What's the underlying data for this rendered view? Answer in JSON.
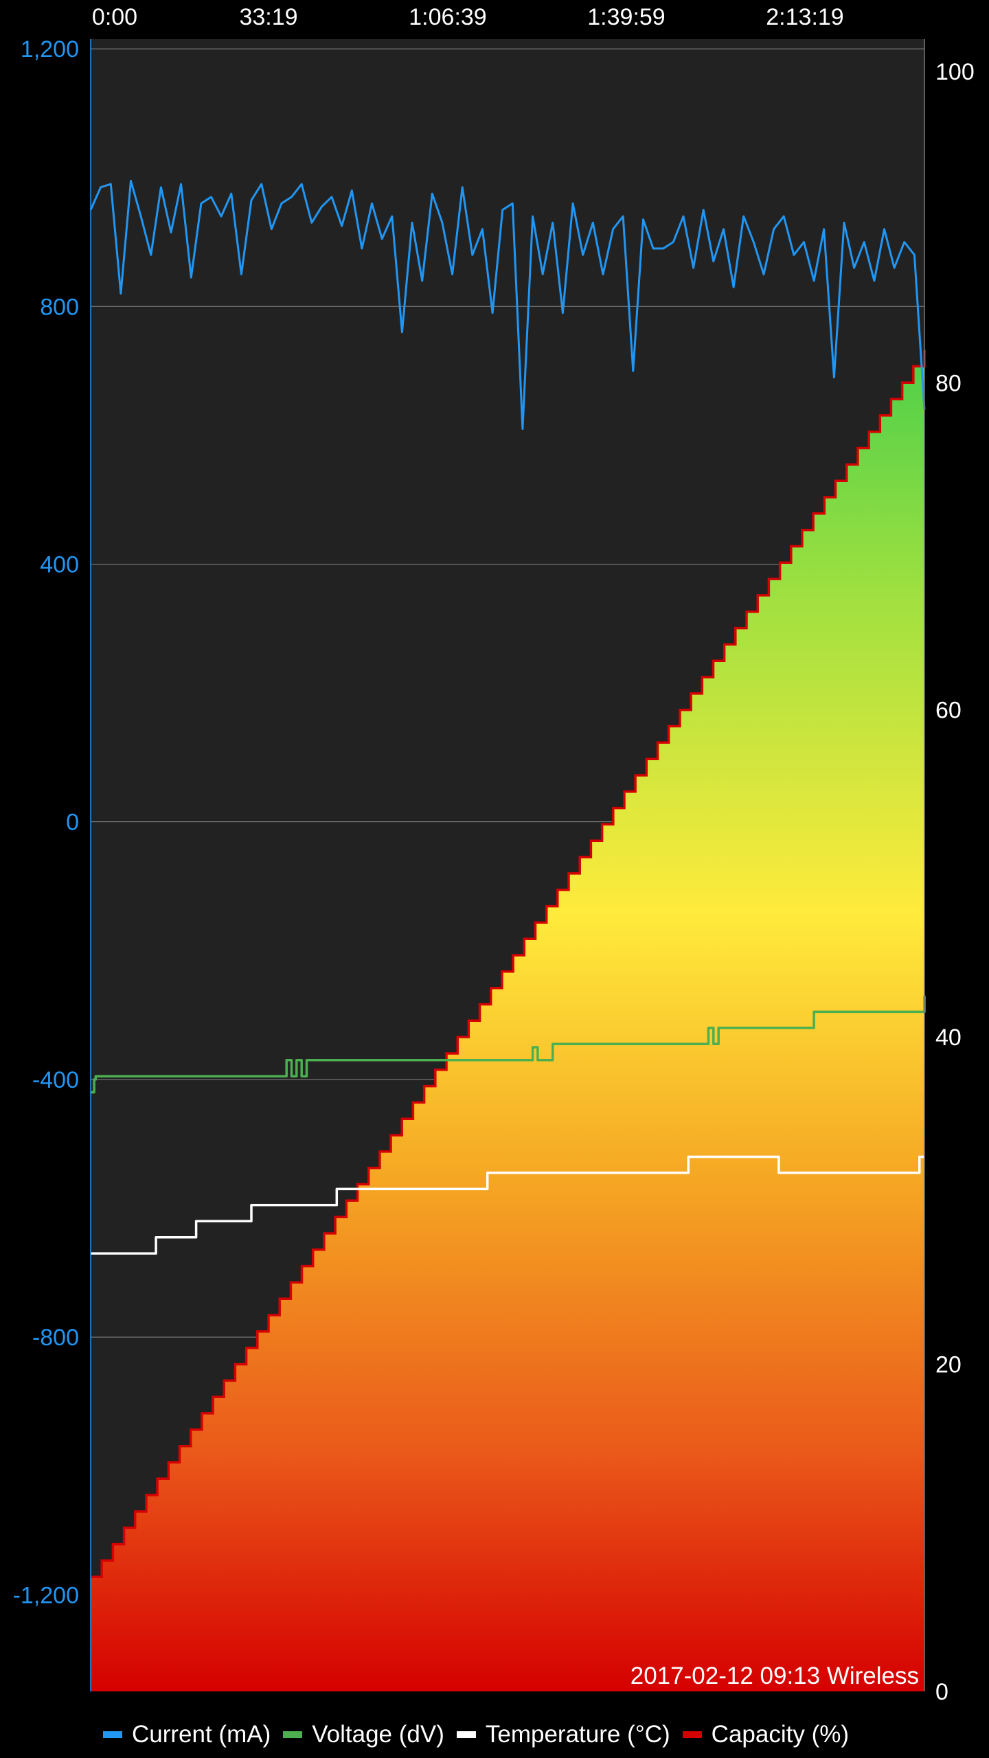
{
  "chart_data": {
    "type": "line",
    "x_tick_labels": [
      "0:00",
      "33:19",
      "1:06:39",
      "1:39:59",
      "2:13:19"
    ],
    "left_axis": {
      "ticks": [
        1200,
        800,
        400,
        0,
        -400,
        -800,
        -1200
      ],
      "tick_labels": [
        "1,200",
        "800",
        "400",
        "0",
        "-400",
        "-800",
        "-1,200"
      ],
      "range": [
        -1350,
        1215
      ],
      "color": "#2196f3"
    },
    "right_axis": {
      "ticks": [
        100,
        80,
        60,
        40,
        20,
        0
      ],
      "tick_labels": [
        "100",
        "80",
        "60",
        "40",
        "20",
        "0"
      ],
      "range": [
        0,
        101
      ]
    },
    "x_range_minutes": [
      0,
      166
    ],
    "grid": true,
    "legend_position": "bottom",
    "stamp": "2017-02-12 09:13 Wireless",
    "series": [
      {
        "name": "Current (mA)",
        "axis": "left",
        "color": "#2196f3",
        "x": [
          0,
          2,
          4,
          6,
          8,
          10,
          12,
          14,
          16,
          18,
          20,
          22,
          24,
          26,
          28,
          30,
          32,
          34,
          36,
          38,
          40,
          42,
          44,
          46,
          48,
          50,
          52,
          54,
          56,
          58,
          60,
          62,
          64,
          66,
          68,
          70,
          72,
          74,
          76,
          78,
          80,
          82,
          84,
          86,
          88,
          90,
          92,
          94,
          96,
          98,
          100,
          102,
          104,
          106,
          108,
          110,
          112,
          114,
          116,
          118,
          120,
          122,
          124,
          126,
          128,
          130,
          132,
          134,
          136,
          138,
          140,
          142,
          144,
          146,
          148,
          150,
          152,
          154,
          156,
          158,
          160,
          162,
          164,
          166
        ],
        "y": [
          950,
          985,
          990,
          820,
          995,
          940,
          880,
          985,
          915,
          990,
          845,
          960,
          970,
          940,
          975,
          850,
          965,
          990,
          920,
          960,
          970,
          990,
          930,
          955,
          970,
          925,
          980,
          890,
          960,
          905,
          940,
          760,
          930,
          840,
          975,
          930,
          850,
          985,
          880,
          920,
          790,
          950,
          960,
          610,
          940,
          850,
          930,
          790,
          960,
          880,
          930,
          850,
          920,
          940,
          700,
          935,
          890,
          890,
          900,
          940,
          860,
          950,
          870,
          920,
          830,
          940,
          900,
          850,
          920,
          940,
          880,
          900,
          840,
          920,
          690,
          930,
          860,
          900,
          840,
          920,
          860,
          900,
          880,
          640
        ]
      },
      {
        "name": "Voltage (dV)",
        "axis": "left",
        "color": "#4caf50",
        "x": [
          0,
          0.7,
          1,
          38,
          39,
          40,
          41,
          42,
          43,
          87,
          88,
          89,
          92,
          122,
          123,
          124,
          125,
          143,
          144,
          165,
          166
        ],
        "y": [
          -420,
          -400,
          -395,
          -395,
          -370,
          -395,
          -370,
          -395,
          -370,
          -370,
          -350,
          -370,
          -345,
          -345,
          -320,
          -345,
          -320,
          -320,
          -295,
          -295,
          -270
        ]
      },
      {
        "name": "Temperature (°C)",
        "axis": "left",
        "color": "#ffffff",
        "x": [
          0,
          12,
          13,
          20,
          21,
          31,
          32,
          48,
          49,
          78,
          79,
          118,
          119,
          136,
          137,
          164,
          165,
          166
        ],
        "y": [
          -670,
          -670,
          -645,
          -645,
          -620,
          -620,
          -595,
          -595,
          -570,
          -570,
          -545,
          -545,
          -520,
          -520,
          -545,
          -545,
          -520,
          -520
        ],
        "fill_gradient": false
      },
      {
        "name": "Capacity (%)",
        "axis": "right",
        "color": "#d50000",
        "x": [
          0,
          166
        ],
        "y": [
          7,
          82
        ],
        "step": 1,
        "fill_gradient": true
      }
    ]
  }
}
